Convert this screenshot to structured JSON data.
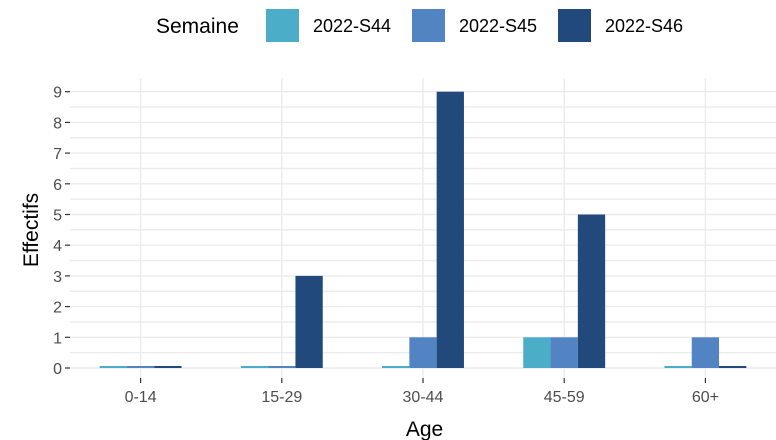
{
  "chart_data": {
    "type": "bar",
    "categories": [
      "0-14",
      "15-29",
      "30-44",
      "45-59",
      "60+"
    ],
    "series": [
      {
        "name": "2022-S44",
        "color": "#4badc8",
        "values": [
          0,
          0,
          0,
          1,
          0
        ]
      },
      {
        "name": "2022-S45",
        "color": "#5284c3",
        "values": [
          0,
          0,
          1,
          1,
          1
        ]
      },
      {
        "name": "2022-S46",
        "color": "#21497c",
        "values": [
          0,
          3,
          9,
          5,
          0
        ]
      }
    ],
    "legend_title": "Semaine",
    "legend_position": "top",
    "xlabel": "Age",
    "ylabel": "Effectifs",
    "ylim": [
      0,
      9
    ],
    "yticks": [
      0,
      1,
      2,
      3,
      4,
      5,
      6,
      7,
      8,
      9
    ],
    "grid": true
  }
}
